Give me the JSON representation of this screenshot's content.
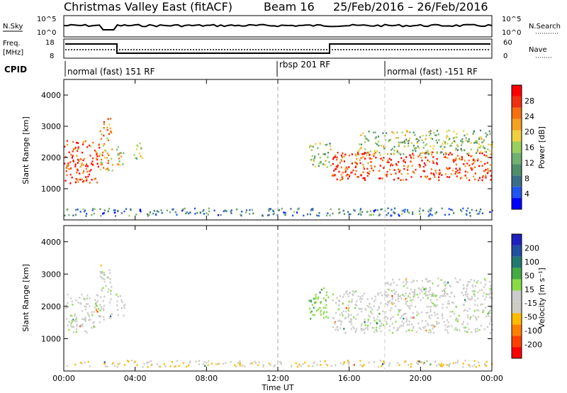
{
  "title": "Christmas Valley East (fitACF)",
  "beam": "Beam 16",
  "date_range": "25/Feb/2016 – 26/Feb/2016",
  "top_panels": {
    "nsky_label": "N.Sky",
    "nsky_ticks": [
      "10^5",
      "10^0"
    ],
    "nsearch_label": "N.Search",
    "nsearch_ticks": [
      "10^5",
      "10^0"
    ],
    "freq_label": "Freq.",
    "freq_unit": "[MHz]",
    "freq_ticks": [
      "18",
      "8"
    ],
    "nave_label": "Nave",
    "nave_ticks": [
      "60",
      "0"
    ],
    "cpid_label": "CPID"
  },
  "cpid_modes": [
    {
      "label": "normal (fast) 151 RF",
      "start_hour": 0
    },
    {
      "label": "rbsp 201 RF",
      "start_hour": 12
    },
    {
      "label": "normal (fast) -151 RF",
      "start_hour": 18
    }
  ],
  "colors": {
    "power_scale": [
      "#0000ff",
      "#2255ee",
      "#3a6f8a",
      "#4f8f6a",
      "#70b070",
      "#9ad060",
      "#f0d040",
      "#f6a020",
      "#f57010",
      "#f03010",
      "#ff0000"
    ],
    "velocity_scale": [
      "#ff0000",
      "#ff4000",
      "#ff8000",
      "#ffbb00",
      "#ccccc4",
      "#cccccc",
      "#88dd44",
      "#44aa44",
      "#207a70",
      "#2050a0",
      "#2020c0"
    ]
  },
  "chart_data": [
    {
      "type": "heatmap",
      "name": "Power",
      "ylabel": "Slant Range [km]",
      "yticks": [
        "1000",
        "2000",
        "3000",
        "4000"
      ],
      "ylim": [
        0,
        4500
      ],
      "xlim_hours": [
        0,
        24
      ],
      "colorbar_label": "Power [dB]",
      "colorbar_ticks": [
        "4",
        "8",
        "12",
        "16",
        "20",
        "24",
        "28"
      ],
      "crange": [
        0,
        30
      ],
      "bands": [
        {
          "t0": 0.0,
          "t1": 2.0,
          "r0": 1200,
          "r1": 2600,
          "v": 26
        },
        {
          "t0": 2.0,
          "t1": 2.7,
          "r0": 1600,
          "r1": 3300,
          "v": 20
        },
        {
          "t0": 2.9,
          "t1": 3.4,
          "r0": 1700,
          "r1": 2400,
          "v": 18
        },
        {
          "t0": 3.9,
          "t1": 4.4,
          "r0": 1900,
          "r1": 2500,
          "v": 14
        },
        {
          "t0": 13.7,
          "t1": 15.0,
          "r0": 1700,
          "r1": 2500,
          "v": 14
        },
        {
          "t0": 15.0,
          "t1": 24.0,
          "r0": 1300,
          "r1": 2200,
          "v": 26
        },
        {
          "t0": 16.5,
          "t1": 24.0,
          "r0": 2100,
          "r1": 2900,
          "v": 14
        },
        {
          "t0": 0.0,
          "t1": 24.0,
          "r0": 150,
          "r1": 400,
          "v": 8
        }
      ]
    },
    {
      "type": "heatmap",
      "name": "Velocity",
      "ylabel": "Slant Range [km]",
      "yticks": [
        "1000",
        "2000",
        "3000",
        "4000"
      ],
      "ylim": [
        0,
        4500
      ],
      "xlim_hours": [
        0,
        24
      ],
      "xlabel": "Time UT",
      "xticks": [
        "00:00",
        "04:00",
        "08:00",
        "12:00",
        "16:00",
        "20:00",
        "00:00"
      ],
      "colorbar_label": "Velocity [m s⁻¹]",
      "colorbar_ticks": [
        "-200",
        "-100",
        "-50",
        "-15",
        "15",
        "50",
        "100",
        "200"
      ],
      "crange": [
        -250,
        250
      ],
      "bands": [
        {
          "t0": 0.0,
          "t1": 2.0,
          "r0": 1200,
          "r1": 2400,
          "v": 0
        },
        {
          "t0": 2.0,
          "t1": 2.7,
          "r0": 1600,
          "r1": 3300,
          "v": 0
        },
        {
          "t0": 2.9,
          "t1": 3.4,
          "r0": 1700,
          "r1": 2400,
          "v": 0
        },
        {
          "t0": 13.7,
          "t1": 14.8,
          "r0": 1600,
          "r1": 2600,
          "v": 60
        },
        {
          "t0": 15.0,
          "t1": 24.0,
          "r0": 1200,
          "r1": 2500,
          "v": 0
        },
        {
          "t0": 18.0,
          "t1": 24.0,
          "r0": 2300,
          "r1": 2900,
          "v": 0
        },
        {
          "t0": 0.0,
          "t1": 24.0,
          "r0": 150,
          "r1": 350,
          "v": -60
        }
      ]
    }
  ]
}
